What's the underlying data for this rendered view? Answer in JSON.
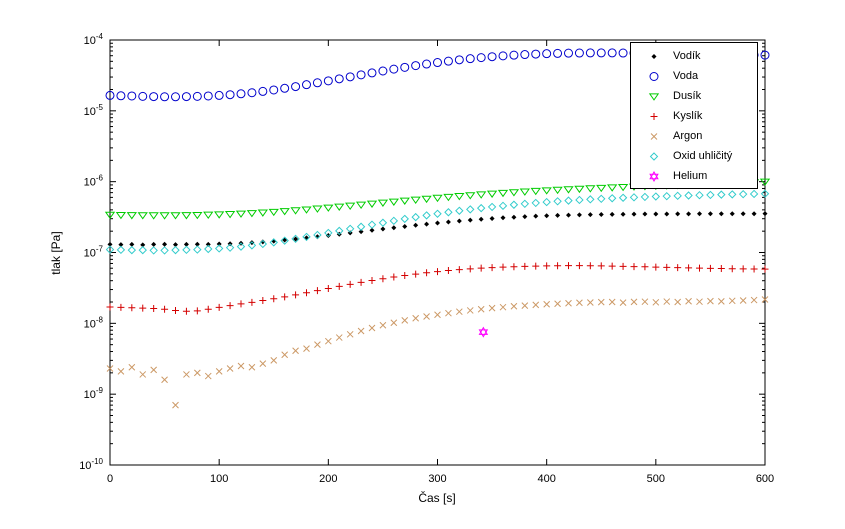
{
  "figure": {
    "background": "#ffffff"
  },
  "chart_data": {
    "type": "scatter",
    "title": "",
    "xlabel": "Čas [s]",
    "ylabel": "tlak [Pa]",
    "xlim": [
      0,
      600
    ],
    "ylim_log10": [
      -10,
      -4
    ],
    "x_ticks": [
      0,
      100,
      200,
      300,
      400,
      500,
      600
    ],
    "y_tick_exponents": [
      -10,
      -9,
      -8,
      -7,
      -6,
      -5,
      -4
    ],
    "y_scale": "log",
    "grid": false,
    "legend_position": "top-right",
    "x": [
      0,
      10,
      20,
      30,
      40,
      50,
      60,
      70,
      80,
      90,
      100,
      110,
      120,
      130,
      140,
      150,
      160,
      170,
      180,
      190,
      200,
      210,
      220,
      230,
      240,
      250,
      260,
      270,
      280,
      290,
      300,
      310,
      320,
      330,
      340,
      350,
      360,
      370,
      380,
      390,
      400,
      410,
      420,
      430,
      440,
      450,
      460,
      470,
      480,
      490,
      500,
      510,
      520,
      530,
      540,
      550,
      560,
      570,
      580,
      590,
      600
    ],
    "series": [
      {
        "id": "vodik",
        "name": "Vodík",
        "marker": "diamond-filled",
        "color": "#000000",
        "size": 2.5,
        "scale": 1e-07,
        "values": [
          1.3,
          1.29,
          1.3,
          1.28,
          1.3,
          1.31,
          1.29,
          1.3,
          1.31,
          1.3,
          1.32,
          1.33,
          1.35,
          1.38,
          1.41,
          1.45,
          1.5,
          1.55,
          1.61,
          1.67,
          1.74,
          1.81,
          1.89,
          1.97,
          2.06,
          2.15,
          2.24,
          2.33,
          2.43,
          2.52,
          2.61,
          2.7,
          2.79,
          2.87,
          2.95,
          3.02,
          3.09,
          3.15,
          3.21,
          3.26,
          3.3,
          3.34,
          3.37,
          3.4,
          3.42,
          3.44,
          3.46,
          3.47,
          3.48,
          3.49,
          3.5,
          3.5,
          3.51,
          3.51,
          3.52,
          3.52,
          3.52,
          3.53,
          3.53,
          3.53,
          3.54
        ]
      },
      {
        "id": "voda",
        "name": "Voda",
        "marker": "circle",
        "color": "#0000CC",
        "size": 4,
        "scale": 1e-05,
        "values": [
          1.65,
          1.63,
          1.62,
          1.6,
          1.59,
          1.58,
          1.58,
          1.59,
          1.6,
          1.62,
          1.65,
          1.69,
          1.74,
          1.8,
          1.88,
          1.97,
          2.08,
          2.2,
          2.34,
          2.49,
          2.65,
          2.83,
          3.02,
          3.22,
          3.43,
          3.65,
          3.88,
          4.11,
          4.35,
          4.58,
          4.81,
          5.03,
          5.25,
          5.45,
          5.64,
          5.81,
          5.97,
          6.11,
          6.23,
          6.33,
          6.41,
          6.47,
          6.52,
          6.55,
          6.57,
          6.57,
          6.57,
          6.55,
          6.53,
          6.5,
          6.47,
          6.43,
          6.4,
          6.36,
          6.32,
          6.28,
          6.25,
          6.21,
          6.18,
          6.15,
          6.12
        ]
      },
      {
        "id": "dusik",
        "name": "Dusík",
        "marker": "triangle-down",
        "color": "#00CC00",
        "size": 4.2,
        "scale": 1e-07,
        "values": [
          3.4,
          3.38,
          3.36,
          3.35,
          3.34,
          3.34,
          3.35,
          3.36,
          3.38,
          3.41,
          3.44,
          3.48,
          3.53,
          3.59,
          3.66,
          3.74,
          3.83,
          3.93,
          4.04,
          4.16,
          4.29,
          4.43,
          4.57,
          4.72,
          4.88,
          5.04,
          5.21,
          5.38,
          5.55,
          5.72,
          5.9,
          6.07,
          6.25,
          6.42,
          6.59,
          6.76,
          6.92,
          7.08,
          7.23,
          7.38,
          7.52,
          7.66,
          7.79,
          7.92,
          8.04,
          8.16,
          8.28,
          8.39,
          8.5,
          8.61,
          8.72,
          8.83,
          8.94,
          9.05,
          9.16,
          9.27,
          9.39,
          9.51,
          9.63,
          9.76,
          10.0
        ]
      },
      {
        "id": "kyslik",
        "name": "Kyslík",
        "marker": "plus",
        "color": "#D40000",
        "size": 3.5,
        "scale": 1e-08,
        "values": [
          1.7,
          1.68,
          1.66,
          1.64,
          1.62,
          1.58,
          1.52,
          1.48,
          1.5,
          1.58,
          1.68,
          1.78,
          1.88,
          1.98,
          2.1,
          2.22,
          2.36,
          2.52,
          2.7,
          2.9,
          3.1,
          3.32,
          3.55,
          3.78,
          4.02,
          4.26,
          4.5,
          4.73,
          4.96,
          5.18,
          5.38,
          5.56,
          5.73,
          5.88,
          6.01,
          6.12,
          6.22,
          6.3,
          6.37,
          6.43,
          6.47,
          6.5,
          6.52,
          6.52,
          6.5,
          6.47,
          6.43,
          6.38,
          6.33,
          6.28,
          6.22,
          6.17,
          6.12,
          6.07,
          6.02,
          5.98,
          5.94,
          5.9,
          5.87,
          5.84,
          5.82
        ]
      },
      {
        "id": "argon",
        "name": "Argon",
        "marker": "x",
        "color": "#CC9966",
        "size": 3,
        "scale": 1e-09,
        "values": [
          2.3,
          2.1,
          2.4,
          1.9,
          2.2,
          1.6,
          0.7,
          1.9,
          2.0,
          1.8,
          2.1,
          2.3,
          2.5,
          2.4,
          2.7,
          3.0,
          3.6,
          4.1,
          4.4,
          5.0,
          5.6,
          6.3,
          7.0,
          7.8,
          8.6,
          9.4,
          10.2,
          11.0,
          11.8,
          12.5,
          13.2,
          13.9,
          14.6,
          15.2,
          15.8,
          16.4,
          16.9,
          17.4,
          17.8,
          18.2,
          18.6,
          18.9,
          19.2,
          19.5,
          19.7,
          19.9,
          20.0,
          19.6,
          20.1,
          20.2,
          19.8,
          20.3,
          20.0,
          20.5,
          20.2,
          20.6,
          20.4,
          20.8,
          21.0,
          21.3,
          21.7
        ]
      },
      {
        "id": "oxid-uhlicity",
        "name": "Oxid uhličitý",
        "marker": "diamond",
        "color": "#33CCCC",
        "size": 3.5,
        "scale": 1e-07,
        "values": [
          1.1,
          1.09,
          1.08,
          1.08,
          1.07,
          1.07,
          1.08,
          1.09,
          1.1,
          1.12,
          1.14,
          1.17,
          1.21,
          1.26,
          1.32,
          1.39,
          1.47,
          1.56,
          1.66,
          1.77,
          1.89,
          2.02,
          2.16,
          2.31,
          2.47,
          2.63,
          2.8,
          2.98,
          3.16,
          3.34,
          3.52,
          3.7,
          3.88,
          4.06,
          4.23,
          4.4,
          4.56,
          4.72,
          4.87,
          5.01,
          5.15,
          5.28,
          5.4,
          5.52,
          5.63,
          5.73,
          5.83,
          5.92,
          6.01,
          6.09,
          6.17,
          6.24,
          6.31,
          6.38,
          6.44,
          6.5,
          6.56,
          6.61,
          6.66,
          6.71,
          6.76
        ]
      },
      {
        "id": "helium",
        "name": "Helium",
        "marker": "hexagram",
        "color": "#FF00FF",
        "size": 4.5,
        "scale": 1e-09,
        "x": [
          342
        ],
        "values": [
          7.5
        ]
      }
    ]
  }
}
